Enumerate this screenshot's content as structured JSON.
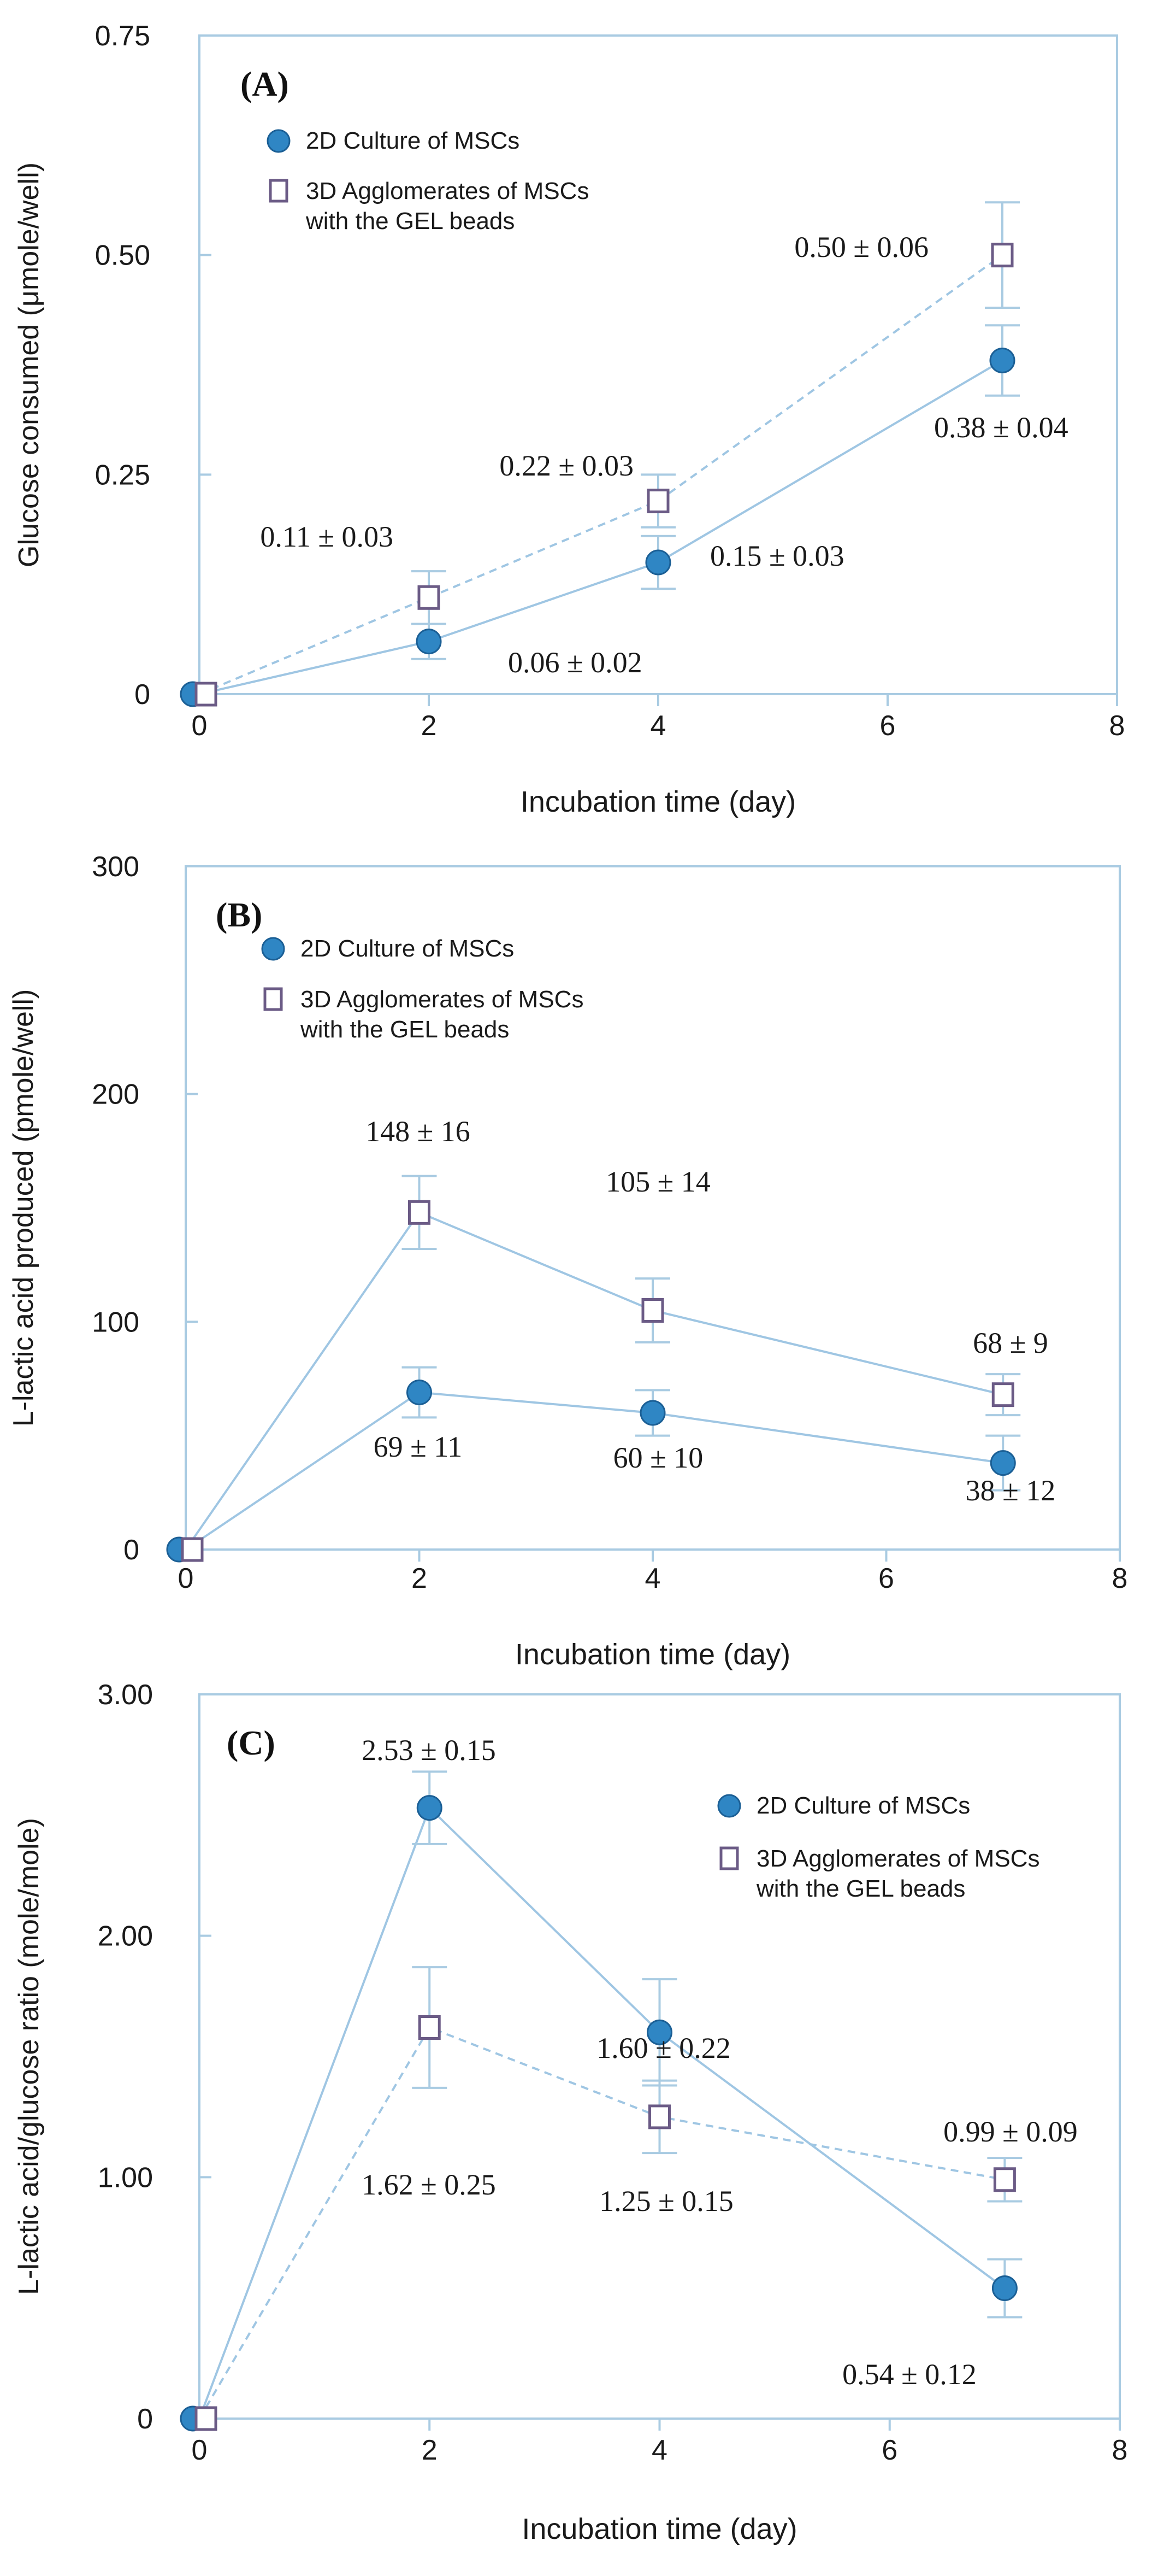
{
  "chart_data": [
    {
      "type": "scatter",
      "panel_label": "(A)",
      "title": "",
      "xlabel": "Incubation time (day)",
      "ylabel": "Glucose consumed (μmole/well)",
      "xlim": [
        0,
        8
      ],
      "ylim": [
        0,
        0.75
      ],
      "x_ticks": [
        "0",
        "2",
        "4",
        "6",
        "8"
      ],
      "y_ticks": [
        "0",
        "0.25",
        "0.50",
        "0.75"
      ],
      "grid": false,
      "legend_position": "top-left",
      "series": [
        {
          "name": "2D Culture of MSCs",
          "marker": "filled-circle",
          "color": "#2f86c4",
          "x": [
            0,
            2,
            4,
            7
          ],
          "y": [
            0,
            0.06,
            0.15,
            0.38
          ],
          "err": [
            0,
            0.02,
            0.03,
            0.04
          ],
          "labels": [
            "",
            "0.06 ± 0.02",
            "0.15 ± 0.03",
            "0.38 ± 0.04"
          ]
        },
        {
          "name_lines": [
            "3D Agglomerates of MSCs",
            "with the GEL beads"
          ],
          "marker": "open-square",
          "color": "#6b5b86",
          "x": [
            0,
            2,
            4,
            7
          ],
          "y": [
            0,
            0.11,
            0.22,
            0.5
          ],
          "err": [
            0,
            0.03,
            0.03,
            0.06
          ],
          "labels": [
            "",
            "0.11 ± 0.03",
            "0.22 ± 0.03",
            "0.50 ± 0.06"
          ]
        }
      ]
    },
    {
      "type": "scatter",
      "panel_label": "(B)",
      "title": "",
      "xlabel": "Incubation time (day)",
      "ylabel": "L-lactic acid produced (pmole/well)",
      "xlim": [
        0,
        8
      ],
      "ylim": [
        0,
        300
      ],
      "x_ticks": [
        "0",
        "2",
        "4",
        "6",
        "8"
      ],
      "y_ticks": [
        "0",
        "100",
        "200",
        "300"
      ],
      "grid": false,
      "legend_position": "top-left",
      "series": [
        {
          "name": "2D Culture of MSCs",
          "marker": "filled-circle",
          "color": "#2f86c4",
          "x": [
            0,
            2,
            4,
            7
          ],
          "y": [
            0,
            69,
            60,
            38
          ],
          "err": [
            0,
            11,
            10,
            12
          ],
          "labels": [
            "",
            "69 ± 11",
            "60 ± 10",
            "38 ± 12"
          ]
        },
        {
          "name_lines": [
            "3D Agglomerates of MSCs",
            "with the GEL beads"
          ],
          "marker": "open-square",
          "color": "#6b5b86",
          "x": [
            0,
            2,
            4,
            7
          ],
          "y": [
            0,
            148,
            105,
            68
          ],
          "err": [
            0,
            16,
            14,
            9
          ],
          "labels": [
            "",
            "148 ± 16",
            "105 ± 14",
            "68 ± 9"
          ]
        }
      ]
    },
    {
      "type": "scatter",
      "panel_label": "(C)",
      "title": "",
      "xlabel": "Incubation time (day)",
      "ylabel": "L-lactic acid/glucose ratio (mole/mole)",
      "xlim": [
        0,
        8
      ],
      "ylim": [
        0,
        3
      ],
      "x_ticks": [
        "0",
        "2",
        "4",
        "6",
        "8"
      ],
      "y_ticks": [
        "0",
        "1.00",
        "2.00",
        "3.00"
      ],
      "grid": false,
      "legend_position": "top-right",
      "series": [
        {
          "name": "2D Culture of MSCs",
          "marker": "filled-circle",
          "color": "#2f86c4",
          "x": [
            0,
            2,
            4,
            7
          ],
          "y": [
            0,
            2.53,
            1.6,
            0.54
          ],
          "err": [
            0,
            0.15,
            0.22,
            0.12
          ],
          "labels": [
            "",
            "2.53 ± 0.15",
            "1.60 ± 0.22",
            "0.54 ± 0.12"
          ]
        },
        {
          "name_lines": [
            "3D Agglomerates of MSCs",
            "with the GEL beads"
          ],
          "marker": "open-square",
          "color": "#6b5b86",
          "x": [
            0,
            2,
            4,
            7
          ],
          "y": [
            0,
            1.62,
            1.25,
            0.99
          ],
          "err": [
            0,
            0.25,
            0.15,
            0.09
          ],
          "labels": [
            "",
            "1.62 ± 0.25",
            "1.25 ± 0.15",
            "0.99 ± 0.09"
          ]
        }
      ]
    }
  ]
}
